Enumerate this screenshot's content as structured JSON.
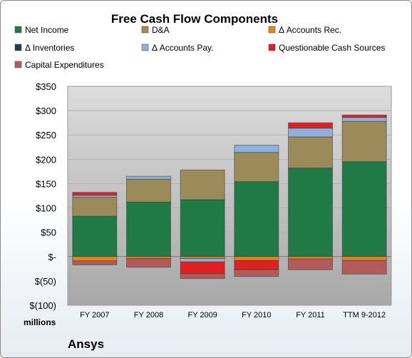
{
  "chart_data": {
    "type": "bar",
    "stacked": true,
    "title": "Free Cash Flow Components",
    "unit_label": "millions",
    "company": "Ansys",
    "categories": [
      "FY 2007",
      "FY 2008",
      "FY 2009",
      "FY 2010",
      "FY 2011",
      "TTM 9-2012"
    ],
    "ylim": [
      -100,
      350
    ],
    "yticks": [
      {
        "value": 350,
        "label": "$350"
      },
      {
        "value": 300,
        "label": "$300"
      },
      {
        "value": 250,
        "label": "$250"
      },
      {
        "value": 200,
        "label": "$200"
      },
      {
        "value": 150,
        "label": "$150"
      },
      {
        "value": 100,
        "label": "$100"
      },
      {
        "value": 50,
        "label": "$50"
      },
      {
        "value": 0,
        "label": "$-"
      },
      {
        "value": -50,
        "label": "$(50)"
      },
      {
        "value": -100,
        "label": "$(100)"
      }
    ],
    "grid": true,
    "legend_position": "top",
    "series": [
      {
        "name": "Net Income",
        "color": "#1f7a45",
        "values": [
          83,
          112,
          117,
          154,
          182,
          195
        ]
      },
      {
        "name": "D&A",
        "color": "#9c8a5a",
        "values": [
          39,
          47,
          61,
          60,
          64,
          83
        ]
      },
      {
        "name": "Δ Accounts Rec.",
        "color": "#e0861c",
        "values": [
          -9,
          -4,
          -4,
          -8,
          -5,
          -8
        ]
      },
      {
        "name": "Δ Inventories",
        "color": "#1e3a5f",
        "values": [
          0,
          0,
          0,
          0,
          0,
          0
        ]
      },
      {
        "name": "Δ Accounts Pay.",
        "color": "#8fb0dc",
        "values": [
          4,
          6,
          -7,
          15,
          18,
          8
        ]
      },
      {
        "name": "Questionable Cash Sources",
        "color": "#e02020",
        "values": [
          6,
          0,
          -24,
          -19,
          11,
          5
        ]
      },
      {
        "name": "Capital Expenditures",
        "color": "#b35a5a",
        "values": [
          -8,
          -18,
          -10,
          -14,
          -22,
          -28
        ]
      }
    ]
  }
}
